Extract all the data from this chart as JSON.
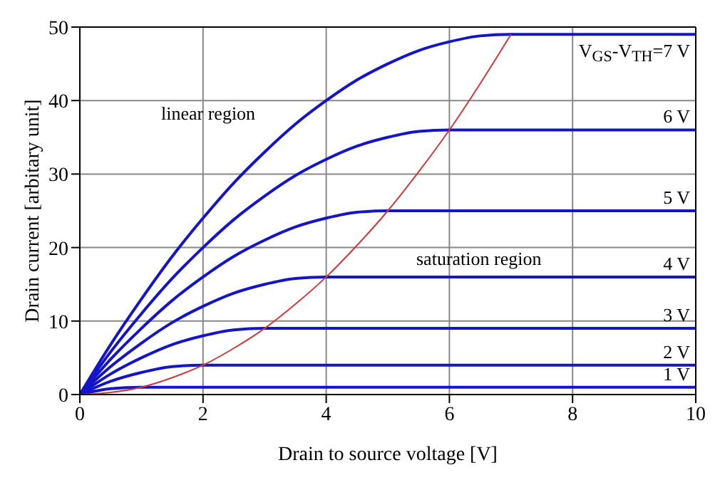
{
  "chart_data": {
    "type": "line",
    "xlabel": "Drain to source voltage [V]",
    "ylabel": "Drain current [arbitary unit]",
    "xlim": [
      0,
      10
    ],
    "xticks": [
      0,
      2,
      4,
      6,
      8,
      10
    ],
    "ylim": [
      0,
      50
    ],
    "yticks": [
      0,
      10,
      20,
      30,
      40,
      50
    ],
    "grid": true,
    "line_style": "solid",
    "annotations": [
      "linear region",
      "saturation region"
    ],
    "series": [
      {
        "name": "V$_{GS}$-V$_{TH}$=7 V",
        "color": "#1414c8",
        "x": [
          0,
          0.5,
          1,
          1.5,
          2,
          2.5,
          3,
          3.5,
          4,
          4.5,
          5,
          5.5,
          6,
          6.5,
          7,
          10
        ],
        "values": [
          0,
          6.8,
          13,
          18.8,
          24,
          28.8,
          33,
          36.8,
          40,
          42.8,
          45,
          46.8,
          48,
          48.8,
          49,
          49
        ]
      },
      {
        "name": "6 V",
        "color": "#1414c8",
        "x": [
          0,
          0.5,
          1,
          1.5,
          2,
          2.5,
          3,
          3.5,
          4,
          4.5,
          5,
          5.5,
          6,
          10
        ],
        "values": [
          0,
          5.8,
          11,
          15.8,
          20,
          23.8,
          27,
          29.8,
          32,
          33.8,
          35,
          35.8,
          36,
          36
        ]
      },
      {
        "name": "5 V",
        "color": "#1414c8",
        "x": [
          0,
          0.5,
          1,
          1.5,
          2,
          2.5,
          3,
          3.5,
          4,
          4.5,
          5,
          10
        ],
        "values": [
          0,
          4.8,
          9,
          12.8,
          16,
          18.8,
          21,
          22.8,
          24,
          24.8,
          25,
          25
        ]
      },
      {
        "name": "4 V",
        "color": "#1414c8",
        "x": [
          0,
          0.5,
          1,
          1.5,
          2,
          2.5,
          3,
          3.5,
          4,
          10
        ],
        "values": [
          0,
          3.8,
          7,
          9.8,
          12,
          13.8,
          15,
          15.8,
          16,
          16
        ]
      },
      {
        "name": "3 V",
        "color": "#1414c8",
        "x": [
          0,
          0.5,
          1,
          1.5,
          2,
          2.5,
          3,
          10
        ],
        "values": [
          0,
          2.8,
          5,
          6.8,
          8,
          8.8,
          9,
          9
        ]
      },
      {
        "name": "2 V",
        "color": "#1414c8",
        "x": [
          0,
          0.5,
          1,
          1.5,
          2,
          10
        ],
        "values": [
          0,
          1.8,
          3,
          3.8,
          4,
          4
        ]
      },
      {
        "name": "1 V",
        "color": "#1414c8",
        "x": [
          0,
          0.5,
          1,
          10
        ],
        "values": [
          0,
          0.8,
          1,
          1
        ]
      },
      {
        "color": "#d03838",
        "x": [
          0,
          0.5,
          1,
          1.5,
          2,
          2.5,
          3,
          3.5,
          4,
          4.5,
          5,
          5.5,
          6,
          6.5,
          7
        ],
        "values": [
          0,
          0.3,
          1,
          2.3,
          4,
          6.3,
          9,
          12.3,
          16,
          20.3,
          25,
          30.3,
          36,
          42.3,
          49
        ]
      }
    ]
  }
}
